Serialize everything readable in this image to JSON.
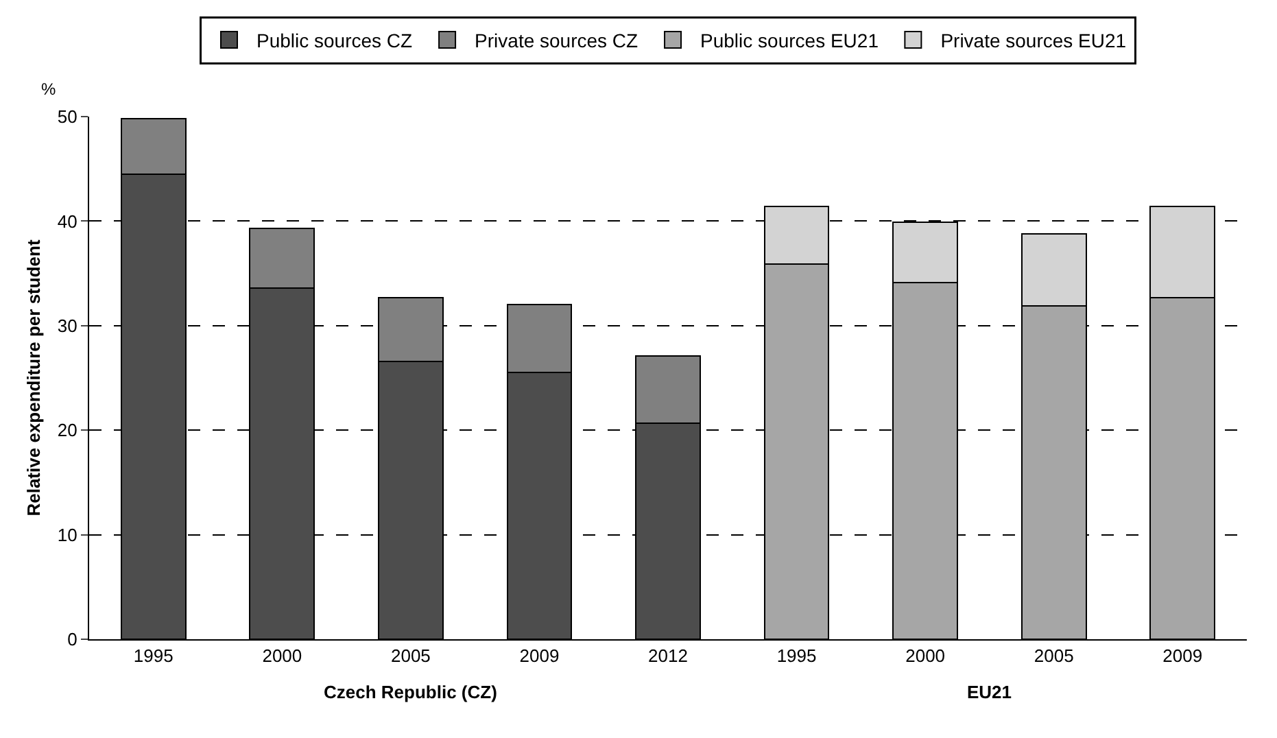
{
  "chart_data": {
    "type": "bar",
    "stacked": true,
    "ylabel": "Relative expenditure per student",
    "categories": [
      "1995",
      "2000",
      "2005",
      "2009",
      "2012",
      "1995",
      "2000",
      "2005",
      "2009"
    ],
    "series": [
      {
        "name": "Public sources CZ",
        "color": "#4d4d4d",
        "values": [
          44.5,
          33.6,
          26.6,
          25.5,
          20.7,
          null,
          null,
          null,
          null
        ]
      },
      {
        "name": "Private sources CZ",
        "color": "#808080",
        "values": [
          5.3,
          5.7,
          6.1,
          6.5,
          6.4,
          null,
          null,
          null,
          null
        ]
      },
      {
        "name": "Public sources EU21",
        "color": "#a6a6a6",
        "values": [
          null,
          null,
          null,
          null,
          null,
          35.9,
          34.1,
          31.9,
          32.7
        ]
      },
      {
        "name": "Private sources EU21",
        "color": "#d3d3d3",
        "values": [
          null,
          null,
          null,
          null,
          null,
          5.5,
          5.8,
          6.9,
          8.7
        ]
      }
    ],
    "ylim": [
      0,
      50
    ],
    "yticks": [
      0,
      10,
      20,
      30,
      40,
      50
    ],
    "grid": "y",
    "line_style": "dashed",
    "legend": "top",
    "annotations": [
      "%",
      "Czech Republic (CZ)",
      "EU21"
    ]
  }
}
